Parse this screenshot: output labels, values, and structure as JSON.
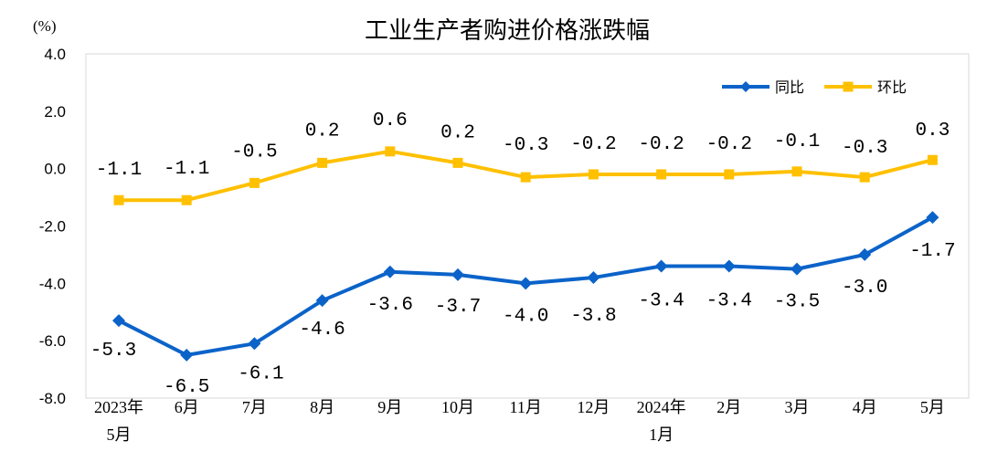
{
  "chart_data": {
    "type": "line",
    "title": "工业生产者购进价格涨跌幅",
    "unit_label": "(%)",
    "ylim": [
      -8.0,
      4.0
    ],
    "y_ticks": [
      "4.0",
      "2.0",
      "0.0",
      "-2.0",
      "-4.0",
      "-6.0",
      "-8.0"
    ],
    "y_tick_values": [
      4,
      2,
      0,
      -2,
      -4,
      -6,
      -8
    ],
    "categories": [
      [
        "2023年",
        "5月"
      ],
      [
        "6月"
      ],
      [
        "7月"
      ],
      [
        "8月"
      ],
      [
        "9月"
      ],
      [
        "10月"
      ],
      [
        "11月"
      ],
      [
        "12月"
      ],
      [
        "2024年",
        "1月"
      ],
      [
        "2月"
      ],
      [
        "3月"
      ],
      [
        "4月"
      ],
      [
        "5月"
      ]
    ],
    "series": [
      {
        "name": "同比",
        "color": "#0B63C9",
        "marker": "diamond",
        "values": [
          -5.3,
          -6.5,
          -6.1,
          -4.6,
          -3.6,
          -3.7,
          -4.0,
          -3.8,
          -3.4,
          -3.4,
          -3.5,
          -3.0,
          -1.7
        ],
        "labels": [
          "-5.3",
          "-6.5",
          "-6.1",
          "-4.6",
          "-3.6",
          "-3.7",
          "-4.0",
          "-3.8",
          "-3.4",
          "-3.4",
          "-3.5",
          "-3.0",
          "-1.7"
        ]
      },
      {
        "name": "环比",
        "color": "#FFC000",
        "marker": "square",
        "values": [
          -1.1,
          -1.1,
          -0.5,
          0.2,
          0.6,
          0.2,
          -0.3,
          -0.2,
          -0.2,
          -0.2,
          -0.1,
          -0.3,
          0.3
        ],
        "labels": [
          "-1.1",
          "-1.1",
          "-0.5",
          "0.2",
          "0.6",
          "0.2",
          "-0.3",
          "-0.2",
          "-0.2",
          "-0.2",
          "-0.1",
          "-0.3",
          "0.3"
        ]
      }
    ],
    "legend_position": "top-right"
  }
}
